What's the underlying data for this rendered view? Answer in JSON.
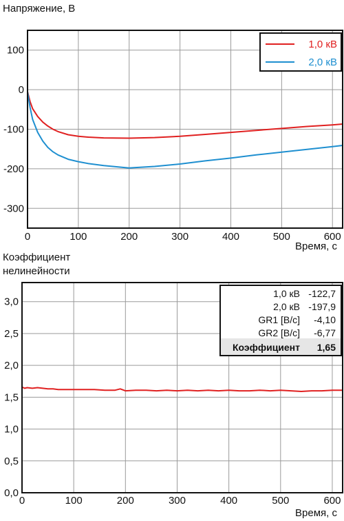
{
  "chart_data": [
    {
      "type": "line",
      "ylabel": "Напряжение, В",
      "xlabel": "Время, с",
      "xlim": [
        0,
        620
      ],
      "ylim": [
        -350,
        150
      ],
      "x_ticks": [
        "0",
        "100",
        "200",
        "300",
        "400",
        "500",
        "600"
      ],
      "y_ticks": [
        "100",
        "0",
        "-100",
        "-200",
        "-300"
      ],
      "grid": true,
      "legend_position": "top-right",
      "series": [
        {
          "name": "1,0 кВ",
          "color": "#e02020",
          "x": [
            0,
            5,
            10,
            20,
            30,
            40,
            50,
            60,
            80,
            100,
            120,
            150,
            200,
            250,
            300,
            350,
            400,
            450,
            500,
            550,
            600,
            620
          ],
          "y": [
            -5,
            -30,
            -48,
            -68,
            -82,
            -92,
            -100,
            -106,
            -114,
            -118,
            -120,
            -122,
            -122.7,
            -121,
            -118,
            -113,
            -108,
            -103,
            -98,
            -93,
            -89,
            -87
          ]
        },
        {
          "name": "2,0 кВ",
          "color": "#1e8fd0",
          "x": [
            0,
            5,
            10,
            20,
            30,
            40,
            50,
            60,
            80,
            100,
            120,
            150,
            200,
            210,
            250,
            300,
            350,
            400,
            450,
            500,
            550,
            600,
            620
          ],
          "y": [
            -5,
            -45,
            -75,
            -108,
            -130,
            -146,
            -157,
            -165,
            -176,
            -182,
            -187,
            -192,
            -197.9,
            -197,
            -194,
            -188,
            -180,
            -173,
            -165,
            -158,
            -151,
            -144,
            -141
          ]
        }
      ]
    },
    {
      "type": "line",
      "ylabel": "Коэффициент нелинейности",
      "xlabel": "Время, с",
      "xlim": [
        0,
        620
      ],
      "ylim": [
        0,
        3.3
      ],
      "x_ticks": [
        "0",
        "100",
        "200",
        "300",
        "400",
        "500",
        "600"
      ],
      "y_ticks": [
        "3,0",
        "2,5",
        "2,0",
        "1,5",
        "1,0",
        "0,5",
        "0,0"
      ],
      "grid": true,
      "series": [
        {
          "name": "Коэффициент",
          "color": "#e02020",
          "x": [
            0,
            5,
            10,
            20,
            30,
            40,
            50,
            60,
            70,
            80,
            100,
            120,
            140,
            160,
            180,
            190,
            200,
            220,
            240,
            260,
            280,
            300,
            320,
            340,
            360,
            380,
            400,
            420,
            440,
            460,
            480,
            500,
            520,
            540,
            560,
            580,
            600,
            620
          ],
          "y": [
            1.66,
            1.64,
            1.65,
            1.64,
            1.65,
            1.64,
            1.63,
            1.63,
            1.62,
            1.62,
            1.62,
            1.62,
            1.62,
            1.61,
            1.61,
            1.63,
            1.6,
            1.61,
            1.61,
            1.6,
            1.61,
            1.6,
            1.61,
            1.6,
            1.61,
            1.6,
            1.61,
            1.6,
            1.6,
            1.61,
            1.6,
            1.61,
            1.6,
            1.59,
            1.6,
            1.6,
            1.61,
            1.61
          ]
        }
      ],
      "info_table": {
        "rows": [
          {
            "label": "1,0 кВ",
            "value": "-122,7"
          },
          {
            "label": "2,0 кВ",
            "value": "-197,9"
          },
          {
            "label": "GR1 [В/с]",
            "value": "-4,10"
          },
          {
            "label": "GR2 [В/с]",
            "value": "-6,77"
          }
        ],
        "result_label": "Коэффициент",
        "result_value": "1,65"
      }
    }
  ]
}
